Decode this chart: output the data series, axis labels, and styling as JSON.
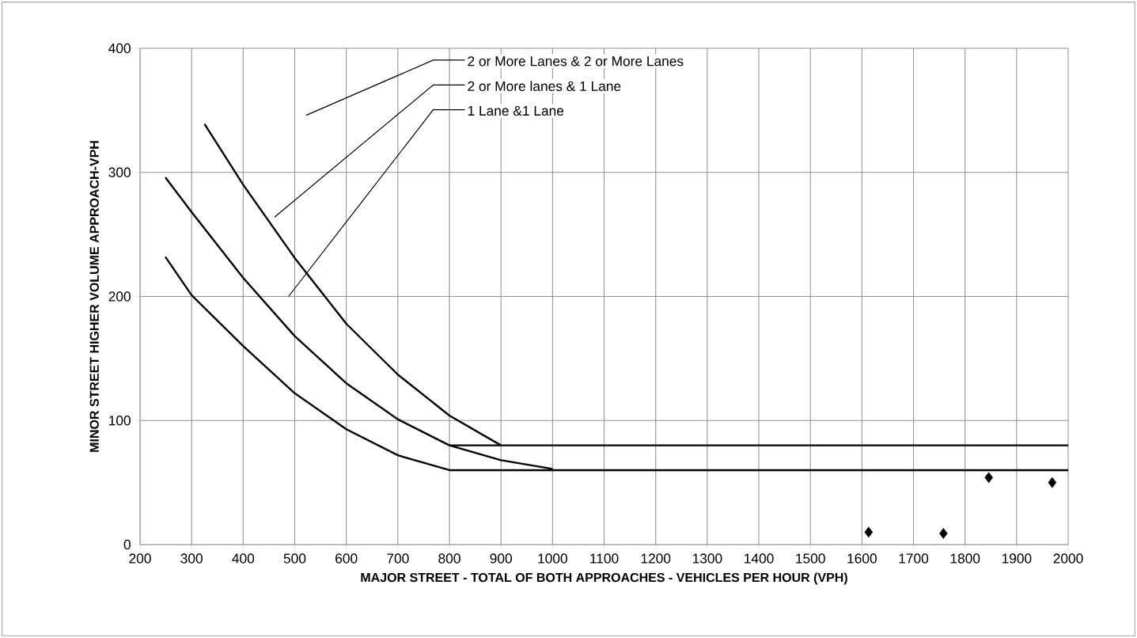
{
  "chart_data": {
    "type": "line",
    "xlabel": "MAJOR STREET - TOTAL OF BOTH APPROACHES - VEHICLES PER HOUR (VPH)",
    "ylabel": "MINOR STREET HIGHER VOLUME APPROACH-VPH",
    "xlim": [
      200,
      2000
    ],
    "ylim": [
      0,
      400
    ],
    "xticks": [
      200,
      300,
      400,
      500,
      600,
      700,
      800,
      900,
      1000,
      1100,
      1200,
      1300,
      1400,
      1500,
      1600,
      1700,
      1800,
      1900,
      2000
    ],
    "yticks": [
      0,
      100,
      200,
      300,
      400
    ],
    "grid": true,
    "marker": "none",
    "line_style": "solid",
    "series": [
      {
        "color": "#000000",
        "x": [
          325,
          400,
          500,
          600,
          700,
          800,
          900,
          2000
        ],
        "values": [
          339,
          290,
          231,
          178,
          137,
          104,
          80,
          80
        ]
      },
      {
        "color": "#000000",
        "x": [
          249,
          300,
          400,
          500,
          600,
          700,
          800,
          900,
          1000
        ],
        "values": [
          296,
          268,
          215,
          168,
          130,
          101,
          80,
          68,
          61
        ]
      },
      {
        "color": "#000000",
        "x": [
          249,
          300,
          400,
          500,
          600,
          700,
          800,
          2000
        ],
        "values": [
          232,
          201,
          160,
          122,
          93,
          72,
          60,
          60
        ]
      },
      {
        "color": "#000000",
        "x": [
          800,
          900
        ],
        "values": [
          80,
          80
        ]
      },
      {
        "type": "scatter",
        "marker": "diamond",
        "color": "#000000",
        "x": [
          1613,
          1758,
          1846,
          1969
        ],
        "values": [
          10,
          9,
          54,
          50
        ]
      }
    ],
    "annotations": [
      "2 or More Lanes & 2 or More Lanes",
      "2 or More lanes & 1 Lane",
      "1 Lane &1 Lane"
    ]
  }
}
